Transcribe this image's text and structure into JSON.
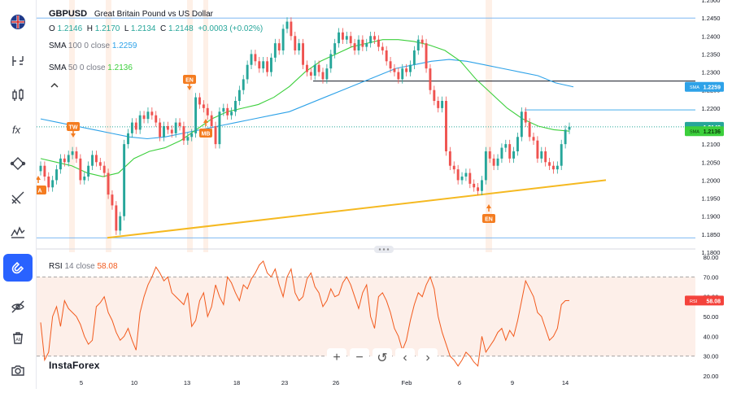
{
  "symbol": "GBPUSD",
  "description": "Great Britain Pound vs US Dollar",
  "ohlc": {
    "o_label": "O",
    "o": "1.2146",
    "h_label": "H",
    "h": "1.2170",
    "l_label": "L",
    "l": "1.2134",
    "c_label": "C",
    "c": "1.2148",
    "change": "+0.0003 (+0.02%)"
  },
  "sma100": {
    "label": "SMA",
    "period": "100",
    "offset": "0",
    "source": "close",
    "value": "1.2259",
    "color": "#2ea2e8"
  },
  "sma50": {
    "label": "SMA",
    "period": "50",
    "offset": "0",
    "source": "close",
    "value": "1.2136",
    "color": "#3ccf3c"
  },
  "rsi": {
    "label": "RSI",
    "period": "14",
    "source": "close",
    "value": "58.08",
    "color": "#f25a1d"
  },
  "price_axis": [
    "1.2500",
    "1.2450",
    "1.2400",
    "1.2350",
    "1.2300",
    "1.2250",
    "1.2200",
    "1.2150",
    "1.2100",
    "1.2050",
    "1.2000",
    "1.1950",
    "1.1900",
    "1.1850",
    "1.1800"
  ],
  "rsi_axis": [
    "80.00",
    "70.00",
    "60.00",
    "50.00",
    "40.00",
    "30.00",
    "20.00"
  ],
  "time_axis": [
    "5",
    "10",
    "13",
    "18",
    "23",
    "26",
    "Feb",
    "6",
    "9",
    "14"
  ],
  "axis_tags": {
    "sma100": {
      "tag": "SMA",
      "value": "1.2259"
    },
    "price": {
      "value": "1.2148"
    },
    "sma50": {
      "tag": "SMA",
      "value": "1.2136"
    },
    "rsi": {
      "tag": "RSI",
      "value": "58.08"
    }
  },
  "markers": [
    {
      "label": "TW",
      "dir": "down"
    },
    {
      "label": "EN",
      "dir": "down"
    },
    {
      "label": "MB",
      "dir": "up"
    },
    {
      "label": "EN",
      "dir": "up"
    },
    {
      "label": "A",
      "dir": "up"
    }
  ],
  "nav": {
    "zoom_in": "+",
    "zoom_out": "−",
    "reset": "↺",
    "back": "‹",
    "forward": "›"
  },
  "brand": "InstaForex",
  "colors": {
    "bull": "#26a69a",
    "bear": "#ef5350",
    "sma100": "#2ea2e8",
    "sma50": "#3ccf3c",
    "trendline": "#f5b921",
    "rsi": "#f25a1d",
    "marker": "#f47c20"
  },
  "chart_data": {
    "type": "candlestick",
    "ylim": [
      1.18,
      1.25
    ],
    "rsi_ylim": [
      20,
      80
    ],
    "rsi_levels": [
      70,
      30
    ],
    "horizontal_levels": [
      1.245,
      1.2275,
      1.2195,
      1.184
    ],
    "close": [
      1.204,
      1.201,
      1.198,
      1.2,
      1.203,
      1.206,
      1.205,
      1.207,
      1.208,
      1.206,
      1.2,
      1.201,
      1.204,
      1.207,
      1.205,
      1.204,
      1.202,
      1.196,
      1.193,
      1.186,
      1.19,
      1.21,
      1.213,
      1.216,
      1.214,
      1.218,
      1.217,
      1.219,
      1.218,
      1.216,
      1.212,
      1.215,
      1.214,
      1.213,
      1.216,
      1.215,
      1.211,
      1.212,
      1.213,
      1.223,
      1.221,
      1.22,
      1.218,
      1.215,
      1.21,
      1.219,
      1.22,
      1.218,
      1.219,
      1.222,
      1.225,
      1.228,
      1.232,
      1.235,
      1.233,
      1.231,
      1.233,
      1.23,
      1.234,
      1.238,
      1.236,
      1.242,
      1.244,
      1.24,
      1.236,
      1.238,
      1.232,
      1.23,
      1.229,
      1.232,
      1.23,
      1.228,
      1.231,
      1.235,
      1.238,
      1.241,
      1.239,
      1.24,
      1.238,
      1.236,
      1.239,
      1.237,
      1.238,
      1.24,
      1.239,
      1.237,
      1.236,
      1.233,
      1.231,
      1.23,
      1.228,
      1.231,
      1.23,
      1.232,
      1.236,
      1.239,
      1.238,
      1.231,
      1.225,
      1.222,
      1.22,
      1.222,
      1.208,
      1.204,
      1.203,
      1.2,
      1.201,
      1.202,
      1.199,
      1.198,
      1.197,
      1.2,
      1.208,
      1.206,
      1.204,
      1.206,
      1.209,
      1.21,
      1.206,
      1.208,
      1.212,
      1.219,
      1.216,
      1.212,
      1.211,
      1.206,
      1.208,
      1.205,
      1.204,
      1.203,
      1.204,
      1.21,
      1.214,
      1.2148
    ],
    "sma50": [
      1.206,
      1.205,
      1.204,
      1.202,
      1.201,
      1.202,
      1.206,
      1.208,
      1.209,
      1.211,
      1.214,
      1.217,
      1.219,
      1.22,
      1.221,
      1.223,
      1.226,
      1.23,
      1.233,
      1.235,
      1.237,
      1.238,
      1.239,
      1.239,
      1.2385,
      1.2375,
      1.236,
      1.233,
      1.228,
      1.224,
      1.22,
      1.217,
      1.215,
      1.214,
      1.2136
    ],
    "sma100": [
      1.217,
      1.216,
      1.215,
      1.214,
      1.213,
      1.212,
      1.2115,
      1.212,
      1.213,
      1.214,
      1.215,
      1.216,
      1.217,
      1.218,
      1.219,
      1.221,
      1.223,
      1.225,
      1.227,
      1.229,
      1.231,
      1.232,
      1.233,
      1.2335,
      1.233,
      1.232,
      1.231,
      1.23,
      1.229,
      1.227,
      1.2259
    ],
    "trendline": [
      {
        "x": 0,
        "y": 1.184
      },
      {
        "x": 1,
        "y": 1.2
      }
    ],
    "rsi_values": [
      47,
      28,
      32,
      50,
      55,
      45,
      58,
      54,
      52,
      50,
      46,
      40,
      36,
      38,
      55,
      57,
      60,
      52,
      48,
      42,
      38,
      40,
      44,
      38,
      33,
      52,
      60,
      66,
      70,
      75,
      72,
      68,
      70,
      62,
      60,
      58,
      56,
      62,
      45,
      48,
      58,
      62,
      50,
      55,
      66,
      60,
      56,
      70,
      67,
      62,
      58,
      66,
      64,
      69,
      72,
      76,
      78,
      72,
      70,
      74,
      66,
      60,
      70,
      74,
      62,
      58,
      60,
      69,
      72,
      65,
      62,
      55,
      58,
      64,
      60,
      61,
      67,
      70,
      66,
      60,
      54,
      62,
      66,
      50,
      44,
      60,
      62,
      58,
      52,
      44,
      40,
      33,
      38,
      48,
      56,
      62,
      60,
      66,
      70,
      64,
      50,
      42,
      36,
      30,
      28,
      25,
      28,
      32,
      30,
      27,
      25,
      40,
      32,
      35,
      38,
      42,
      44,
      38,
      43,
      40,
      48,
      58,
      68,
      64,
      60,
      52,
      50,
      44,
      38,
      40,
      44,
      56,
      58,
      58.08
    ]
  }
}
